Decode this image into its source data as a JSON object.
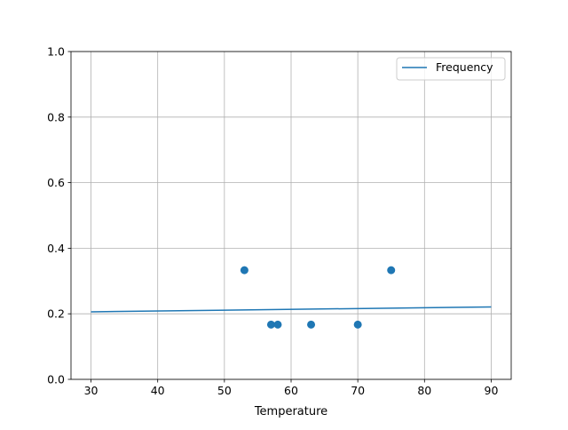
{
  "chart_data": {
    "type": "scatter+line",
    "title": "",
    "xlabel": "Temperature",
    "ylabel": "",
    "xlim": [
      27,
      93
    ],
    "ylim": [
      0,
      1.0
    ],
    "xticks": [
      "30",
      "40",
      "50",
      "60",
      "70",
      "80",
      "90"
    ],
    "yticks": [
      "0.0",
      "0.2",
      "0.4",
      "0.6",
      "0.8",
      "1.0"
    ],
    "grid": true,
    "legend": {
      "placement": "top-right",
      "entries": [
        "Frequency"
      ]
    },
    "color": "#1f77b4",
    "line": {
      "name": "Frequency",
      "x": [
        30,
        90
      ],
      "y": [
        0.206,
        0.221
      ]
    },
    "scatter": {
      "x": [
        53,
        57,
        58,
        63,
        70,
        75
      ],
      "y": [
        0.333,
        0.167,
        0.167,
        0.167,
        0.167,
        0.333
      ]
    }
  }
}
